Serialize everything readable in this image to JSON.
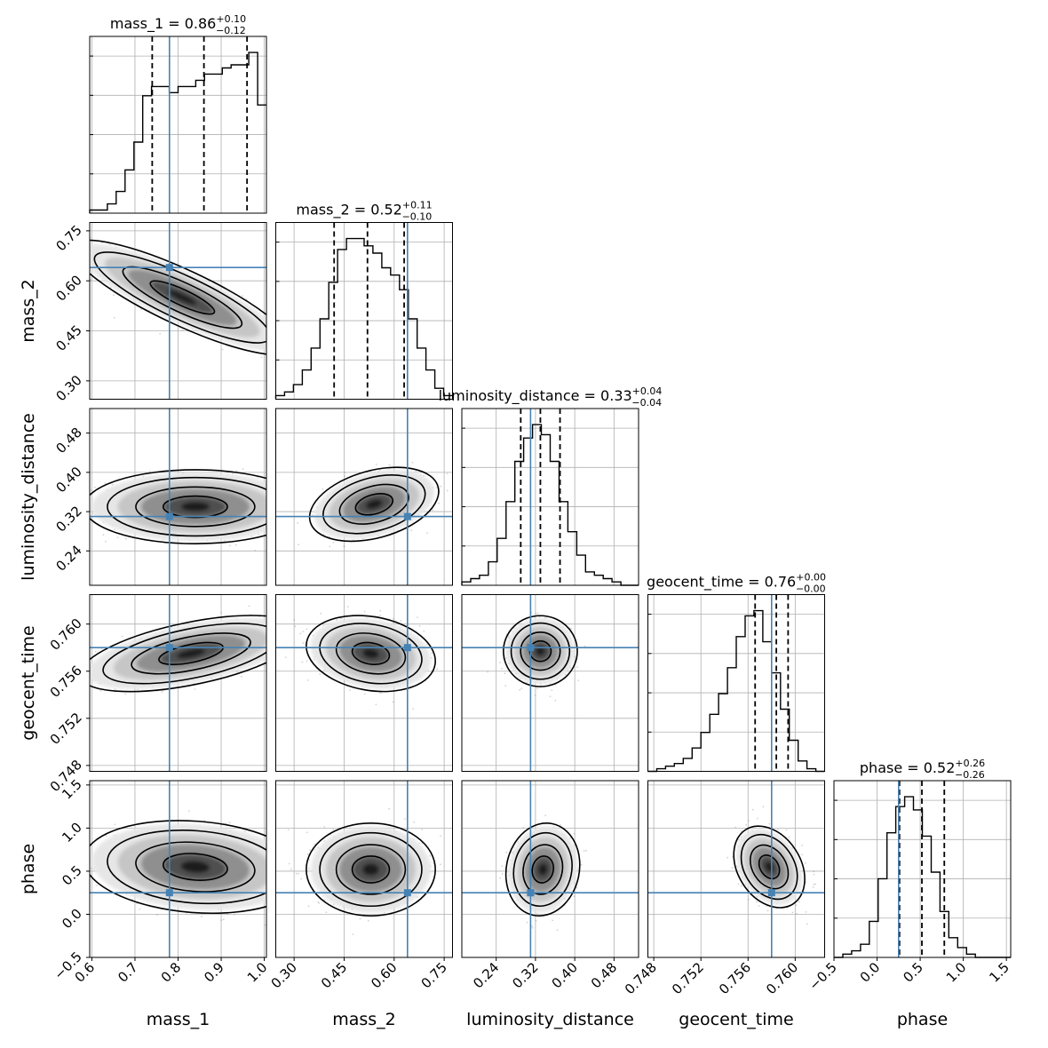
{
  "figure": {
    "type": "corner plot",
    "parameters": [
      "mass_1",
      "mass_2",
      "luminosity_distance",
      "geocent_time",
      "phase"
    ]
  },
  "colors": {
    "truth": "#4682b4",
    "histogram": "#000000",
    "grid": "#b0b0b0",
    "samples": "#808080"
  },
  "chart_data": {
    "type": "corner",
    "grid": true,
    "parameters": [
      {
        "name": "mass_1",
        "title": "mass_1 = 0.86",
        "title_value": "0.86",
        "title_plus": "+0.10",
        "title_minus": "−0.12",
        "range": [
          0.595,
          1.005
        ],
        "ticks": [
          0.6,
          0.7,
          0.8,
          0.9,
          1.0
        ],
        "tick_labels": [
          "0.6",
          "0.7",
          "0.8",
          "0.9",
          "1.0"
        ],
        "quantiles": [
          0.74,
          0.86,
          0.96
        ],
        "truth": 0.78,
        "histogram": {
          "edges_start": 0.595,
          "bin_width": 0.0205,
          "counts": [
            1,
            1,
            3,
            7,
            14,
            23,
            38,
            41,
            41,
            39,
            41,
            41,
            43,
            45,
            45,
            47,
            48,
            48,
            52,
            35
          ]
        }
      },
      {
        "name": "mass_2",
        "title": "mass_2 = 0.52",
        "title_value": "0.52",
        "title_plus": "+0.11",
        "title_minus": "−0.10",
        "range": [
          0.245,
          0.775
        ],
        "ticks": [
          0.3,
          0.45,
          0.6,
          0.75
        ],
        "tick_labels": [
          "0.30",
          "0.45",
          "0.60",
          "0.75"
        ],
        "quantiles": [
          0.42,
          0.52,
          0.63
        ],
        "truth": 0.64,
        "histogram": {
          "edges_start": 0.245,
          "bin_width": 0.0265,
          "counts": [
            1,
            2,
            4,
            8,
            14,
            22,
            32,
            41,
            44,
            44,
            42,
            40,
            36,
            34,
            30,
            22,
            14,
            8,
            3,
            1
          ]
        }
      },
      {
        "name": "luminosity_distance",
        "title": "luminosity_distance = 0.33",
        "title_value": "0.33",
        "title_plus": "+0.04",
        "title_minus": "−0.04",
        "range": [
          0.17,
          0.53
        ],
        "ticks": [
          0.24,
          0.32,
          0.4,
          0.48
        ],
        "tick_labels": [
          "0.24",
          "0.32",
          "0.40",
          "0.48"
        ],
        "quantiles": [
          0.29,
          0.33,
          0.37
        ],
        "truth": 0.31,
        "histogram": {
          "edges_start": 0.17,
          "bin_width": 0.018,
          "counts": [
            1,
            2,
            3,
            7,
            14,
            25,
            37,
            44,
            48,
            45,
            37,
            25,
            16,
            9,
            4,
            3,
            2,
            1,
            0,
            0
          ]
        }
      },
      {
        "name": "geocent_time",
        "title": "geocent_time = 0.76",
        "title_value": "0.76",
        "title_plus": "+0.00",
        "title_minus": "−0.00",
        "range": [
          0.7475,
          0.7625
        ],
        "ticks": [
          0.748,
          0.752,
          0.756,
          0.76
        ],
        "tick_labels": [
          "0.748",
          "0.752",
          "0.756",
          "0.760"
        ],
        "quantiles": [
          0.7566,
          0.7584,
          0.7594
        ],
        "truth": 0.758,
        "histogram": {
          "edges_start": 0.7475,
          "bin_width": 0.00075,
          "counts": [
            0,
            1,
            2,
            3,
            5,
            9,
            15,
            22,
            30,
            40,
            52,
            60,
            62,
            50,
            38,
            24,
            12,
            4,
            1,
            0
          ]
        }
      },
      {
        "name": "phase",
        "title": "phase = 0.52",
        "title_value": "0.52",
        "title_plus": "+0.26",
        "title_minus": "−0.26",
        "range": [
          -0.5,
          1.55
        ],
        "ticks": [
          -0.5,
          0.0,
          0.5,
          1.0,
          1.5
        ],
        "tick_labels": [
          "−0.5",
          "0.0",
          "0.5",
          "1.0",
          "1.5"
        ],
        "quantiles": [
          0.26,
          0.52,
          0.78
        ],
        "truth": 0.25,
        "histogram": {
          "edges_start": -0.5,
          "bin_width": 0.1025,
          "counts": [
            0,
            1,
            2,
            4,
            11,
            24,
            38,
            46,
            49,
            45,
            37,
            26,
            14,
            6,
            3,
            1,
            0,
            0,
            0,
            0
          ]
        }
      }
    ],
    "hist2d": [
      {
        "x": "mass_1",
        "y": "mass_2",
        "center": [
          0.81,
          0.55
        ],
        "spread": [
          0.12,
          0.08
        ],
        "corr": -0.85
      },
      {
        "x": "mass_1",
        "y": "luminosity_distance",
        "center": [
          0.84,
          0.33
        ],
        "spread": [
          0.12,
          0.035
        ],
        "corr": 0.0
      },
      {
        "x": "mass_2",
        "y": "luminosity_distance",
        "center": [
          0.54,
          0.335
        ],
        "spread": [
          0.09,
          0.035
        ],
        "corr": 0.35
      },
      {
        "x": "mass_1",
        "y": "geocent_time",
        "center": [
          0.83,
          0.7575
        ],
        "spread": [
          0.12,
          0.0015
        ],
        "corr": 0.55
      },
      {
        "x": "mass_2",
        "y": "geocent_time",
        "center": [
          0.53,
          0.7575
        ],
        "spread": [
          0.09,
          0.0015
        ],
        "corr": -0.2
      },
      {
        "x": "luminosity_distance",
        "y": "geocent_time",
        "center": [
          0.33,
          0.7577
        ],
        "spread": [
          0.035,
          0.0014
        ],
        "corr": 0.0
      },
      {
        "x": "mass_1",
        "y": "phase",
        "center": [
          0.84,
          0.55
        ],
        "spread": [
          0.12,
          0.25
        ],
        "corr": -0.15
      },
      {
        "x": "mass_2",
        "y": "phase",
        "center": [
          0.53,
          0.52
        ],
        "spread": [
          0.09,
          0.25
        ],
        "corr": 0.0
      },
      {
        "x": "luminosity_distance",
        "y": "phase",
        "center": [
          0.335,
          0.52
        ],
        "spread": [
          0.035,
          0.25
        ],
        "corr": 0.1
      },
      {
        "x": "geocent_time",
        "y": "phase",
        "center": [
          0.7578,
          0.55
        ],
        "spread": [
          0.0014,
          0.22
        ],
        "corr": -0.3
      }
    ]
  }
}
